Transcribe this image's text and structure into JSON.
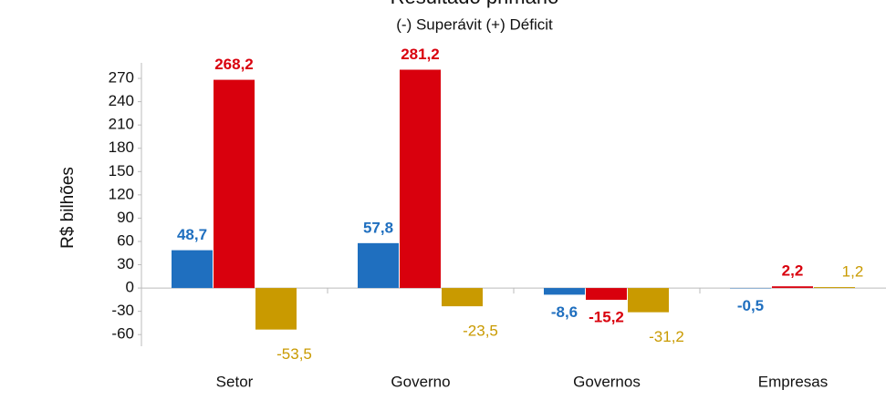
{
  "chart_data": {
    "type": "bar",
    "title": "Resultado primário",
    "subtitle": "(-) Superávit  (+) Déficit",
    "y_label": "R$ bilhões",
    "categories": [
      "Setor",
      "Governo",
      "Governos",
      "Empresas"
    ],
    "series": [
      {
        "color": "#1f6fbf",
        "values": [
          48.7,
          57.8,
          -8.6,
          -0.5
        ],
        "value_labels": [
          "48,7",
          "57,8",
          "-8,6",
          "-0,5"
        ]
      },
      {
        "color": "#d9000d",
        "values": [
          268.2,
          281.2,
          -15.2,
          2.2
        ],
        "value_labels": [
          "268,2",
          "281,2",
          "-15,2",
          "2,2"
        ]
      },
      {
        "color": "#c99a00",
        "values": [
          -53.5,
          -23.5,
          -31.2,
          1.2
        ],
        "value_labels": [
          "-53,5",
          "-23,5",
          "-31,2",
          "1,2"
        ]
      }
    ],
    "ylim": [
      -75,
      290
    ],
    "yticks": [
      -60,
      -30,
      0,
      30,
      60,
      90,
      120,
      150,
      180,
      210,
      240,
      270
    ],
    "grid": false
  }
}
